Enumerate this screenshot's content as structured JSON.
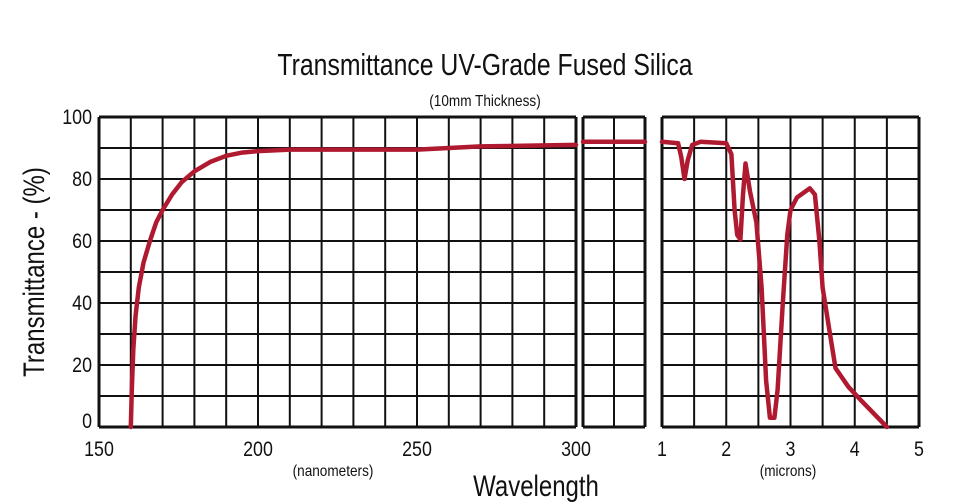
{
  "chart_data": [
    {
      "type": "line",
      "title": "Transmittance UV-Grade Fused Silica",
      "subtitle": "(10mm Thickness)",
      "xlabel": "Wavelength",
      "ylabel": "Transmittance - (%)",
      "x_unit": "(nanometers)",
      "xlim": [
        150,
        300
      ],
      "ylim": [
        0,
        100
      ],
      "x_ticks": [
        "150",
        "200",
        "250",
        "300"
      ],
      "y_ticks": [
        "0",
        "20",
        "40",
        "60",
        "80",
        "100"
      ],
      "grid": true,
      "line_color": "#b01a30",
      "x": [
        160,
        160.3,
        160.8,
        161.5,
        162.5,
        164,
        166,
        168,
        170,
        173,
        176,
        180,
        185,
        190,
        195,
        200,
        210,
        230,
        250,
        270,
        300
      ],
      "y": [
        0,
        12,
        25,
        36,
        45,
        53,
        60,
        66,
        70,
        75,
        79,
        82.5,
        85.5,
        87.5,
        88.5,
        89,
        89.5,
        89.5,
        89.5,
        90.5,
        91
      ]
    },
    {
      "type": "line",
      "xlim": [
        300,
        1000
      ],
      "ylim": [
        0,
        100
      ],
      "grid": true,
      "line_color": "#b01a30",
      "x": [
        300,
        1000
      ],
      "y": [
        92,
        92
      ]
    },
    {
      "type": "line",
      "x_unit": "(microns)",
      "xlim": [
        1,
        5
      ],
      "ylim": [
        0,
        100
      ],
      "x_ticks": [
        "1",
        "2",
        "3",
        "4",
        "5"
      ],
      "grid": true,
      "line_color": "#b01a30",
      "x": [
        1.0,
        1.25,
        1.3,
        1.35,
        1.4,
        1.47,
        1.6,
        2.0,
        2.08,
        2.13,
        2.17,
        2.22,
        2.26,
        2.3,
        2.37,
        2.47,
        2.55,
        2.62,
        2.68,
        2.75,
        2.8,
        2.88,
        2.95,
        3.0,
        3.1,
        3.3,
        3.38,
        3.45,
        3.5,
        3.6,
        3.7,
        3.9,
        4.1,
        4.5
      ],
      "y": [
        92,
        91.5,
        87,
        80,
        86,
        91,
        92,
        91.5,
        88,
        70,
        62,
        60.5,
        75,
        85,
        76,
        66,
        45,
        15,
        3,
        3,
        12,
        40,
        62,
        70,
        74,
        77,
        75,
        60,
        45,
        32,
        19,
        13,
        8.5,
        0
      ]
    }
  ]
}
